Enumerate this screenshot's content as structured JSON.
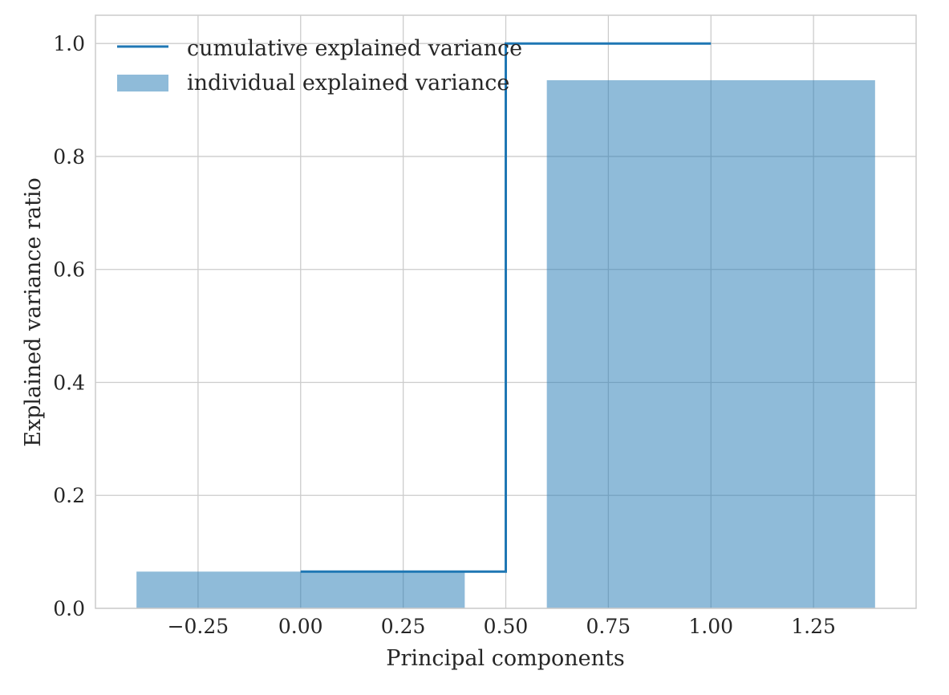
{
  "chart_data": {
    "type": "bar",
    "xlabel": "Principal components",
    "ylabel": "Explained variance ratio",
    "xlim": [
      -0.5,
      1.5
    ],
    "ylim": [
      0.0,
      1.05
    ],
    "x_ticks": [
      -0.25,
      0.0,
      0.25,
      0.5,
      0.75,
      1.0,
      1.25
    ],
    "x_tick_labels": [
      "−0.25",
      "0.00",
      "0.25",
      "0.50",
      "0.75",
      "1.00",
      "1.25"
    ],
    "y_ticks": [
      0.0,
      0.2,
      0.4,
      0.6,
      0.8,
      1.0
    ],
    "y_tick_labels": [
      "0.0",
      "0.2",
      "0.4",
      "0.6",
      "0.8",
      "1.0"
    ],
    "grid": true,
    "legend_position": "top-left",
    "series": [
      {
        "name": "individual explained variance",
        "kind": "bar",
        "x": [
          0,
          1
        ],
        "values": [
          0.065,
          0.935
        ],
        "bar_width": 0.8,
        "color": "#1f77b4",
        "alpha": 0.5
      },
      {
        "name": "cumulative explained variance",
        "kind": "step",
        "step_where": "mid",
        "x": [
          0,
          1
        ],
        "values": [
          0.065,
          1.0
        ],
        "color": "#1f77b4"
      }
    ]
  },
  "colors": {
    "grid": "#cccccc",
    "spine": "#cccccc",
    "bar": "#1f77b4",
    "line": "#1f77b4"
  }
}
